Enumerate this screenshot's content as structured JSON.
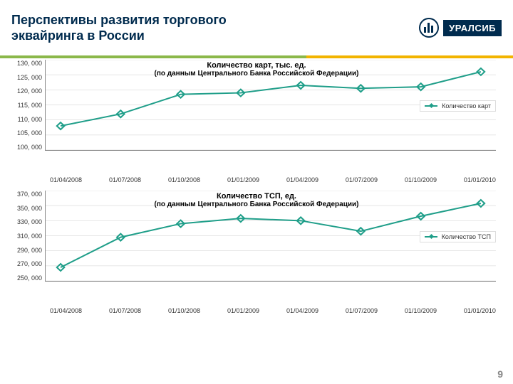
{
  "header": {
    "title_line1": "Перспективы развития торгового",
    "title_line2": "эквайринга в России",
    "logo_text": "УРАЛСИБ",
    "rule_color_left": "#8bb84a",
    "rule_color_right": "#f2b400",
    "title_color": "#002b4e"
  },
  "chart1": {
    "type": "line",
    "title": "Количество карт, тыс. ед.",
    "subtitle": "(по данным Центрального Банка Российской Федерации)",
    "legend_label": "Количество карт",
    "line_color": "#1f9e89",
    "marker_color": "#1f9e89",
    "marker_shape": "diamond",
    "marker_size": 5,
    "line_width": 2,
    "grid_color": "#cccccc",
    "axis_color": "#888888",
    "label_fontsize": 9,
    "title_fontsize": 11,
    "ylim": [
      100000,
      130000
    ],
    "ytick_step": 5000,
    "ytick_labels": [
      "130, 000",
      "125, 000",
      "120, 000",
      "115, 000",
      "110, 000",
      "105, 000",
      "100, 000"
    ],
    "x_labels": [
      "01/04/2008",
      "01/07/2008",
      "01/10/2008",
      "01/01/2009",
      "01/04/2009",
      "01/07/2009",
      "01/10/2009",
      "01/01/2010"
    ],
    "values": [
      108000,
      112000,
      118500,
      119000,
      121500,
      120500,
      121000,
      126000
    ]
  },
  "chart2": {
    "type": "line",
    "title": "Количество ТСП, ед.",
    "subtitle": "(по данным Центрального Банка Российской Федерации)",
    "legend_label": "Количество ТСП",
    "line_color": "#1f9e89",
    "marker_color": "#1f9e89",
    "marker_shape": "diamond",
    "marker_size": 5,
    "line_width": 2,
    "grid_color": "#cccccc",
    "axis_color": "#888888",
    "label_fontsize": 9,
    "title_fontsize": 11,
    "ylim": [
      250000,
      370000
    ],
    "ytick_step": 20000,
    "ytick_labels": [
      "370, 000",
      "350, 000",
      "330, 000",
      "310, 000",
      "290, 000",
      "270, 000",
      "250, 000"
    ],
    "x_labels": [
      "01/04/2008",
      "01/07/2008",
      "01/10/2008",
      "01/01/2009",
      "01/04/2009",
      "01/07/2009",
      "01/10/2009",
      "01/01/2010"
    ],
    "values": [
      268000,
      308000,
      326000,
      333000,
      330000,
      316000,
      336000,
      353000
    ]
  },
  "page_number": "9"
}
